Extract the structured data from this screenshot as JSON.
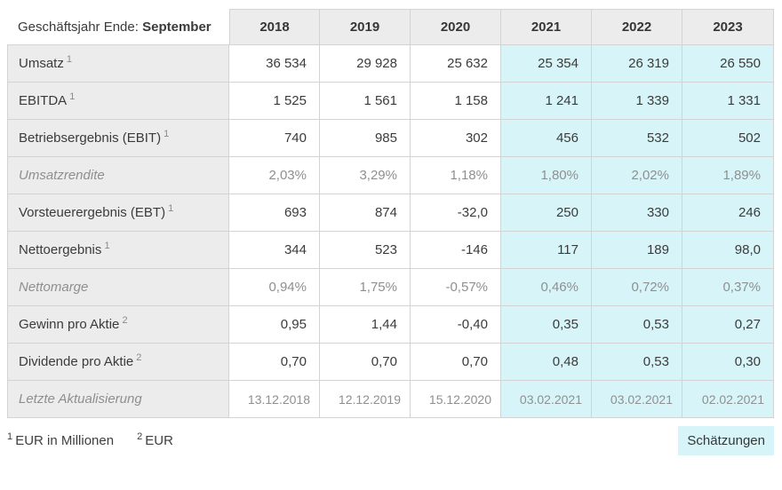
{
  "chart_data": {
    "type": "table",
    "title_prefix": "Geschäftsjahr Ende:",
    "title_bold": "September",
    "columns": [
      "2018",
      "2019",
      "2020",
      "2021",
      "2022",
      "2023"
    ],
    "estimate_start_index": 3,
    "estimate_columns": [
      "2021",
      "2022",
      "2023"
    ],
    "rows": [
      {
        "label": "Umsatz",
        "sup": "1",
        "style": "normal",
        "values": [
          "36 534",
          "29 928",
          "25 632",
          "25 354",
          "26 319",
          "26 550"
        ]
      },
      {
        "label": "EBITDA",
        "sup": "1",
        "style": "normal",
        "values": [
          "1 525",
          "1 561",
          "1 158",
          "1 241",
          "1 339",
          "1 331"
        ]
      },
      {
        "label": "Betriebsergebnis (EBIT)",
        "sup": "1",
        "style": "normal",
        "values": [
          "740",
          "985",
          "302",
          "456",
          "532",
          "502"
        ]
      },
      {
        "label": "Umsatzrendite",
        "sup": "",
        "style": "muted",
        "values": [
          "2,03%",
          "3,29%",
          "1,18%",
          "1,80%",
          "2,02%",
          "1,89%"
        ]
      },
      {
        "label": "Vorsteuerergebnis (EBT)",
        "sup": "1",
        "style": "normal",
        "values": [
          "693",
          "874",
          "-32,0",
          "250",
          "330",
          "246"
        ]
      },
      {
        "label": "Nettoergebnis",
        "sup": "1",
        "style": "normal",
        "values": [
          "344",
          "523",
          "-146",
          "117",
          "189",
          "98,0"
        ]
      },
      {
        "label": "Nettomarge",
        "sup": "",
        "style": "muted",
        "values": [
          "0,94%",
          "1,75%",
          "-0,57%",
          "0,46%",
          "0,72%",
          "0,37%"
        ]
      },
      {
        "label": "Gewinn pro Aktie",
        "sup": "2",
        "style": "normal",
        "values": [
          "0,95",
          "1,44",
          "-0,40",
          "0,35",
          "0,53",
          "0,27"
        ]
      },
      {
        "label": "Dividende pro Aktie",
        "sup": "2",
        "style": "normal",
        "values": [
          "0,70",
          "0,70",
          "0,70",
          "0,48",
          "0,53",
          "0,30"
        ]
      },
      {
        "label": "Letzte Aktualisierung",
        "sup": "",
        "style": "muted dates",
        "values": [
          "13.12.2018",
          "12.12.2019",
          "15.12.2020",
          "03.02.2021",
          "03.02.2021",
          "02.02.2021"
        ]
      }
    ]
  },
  "footnotes": [
    {
      "sup": "1",
      "text": "EUR in Millionen"
    },
    {
      "sup": "2",
      "text": "EUR"
    }
  ],
  "legend": {
    "estimates_label": "Schätzungen"
  },
  "colors": {
    "estimate_bg": "#d7f5f8",
    "header_bg": "#ececec",
    "border": "#d3d3d3",
    "text": "#3b3b3b",
    "muted_text": "#8f8f8f"
  }
}
